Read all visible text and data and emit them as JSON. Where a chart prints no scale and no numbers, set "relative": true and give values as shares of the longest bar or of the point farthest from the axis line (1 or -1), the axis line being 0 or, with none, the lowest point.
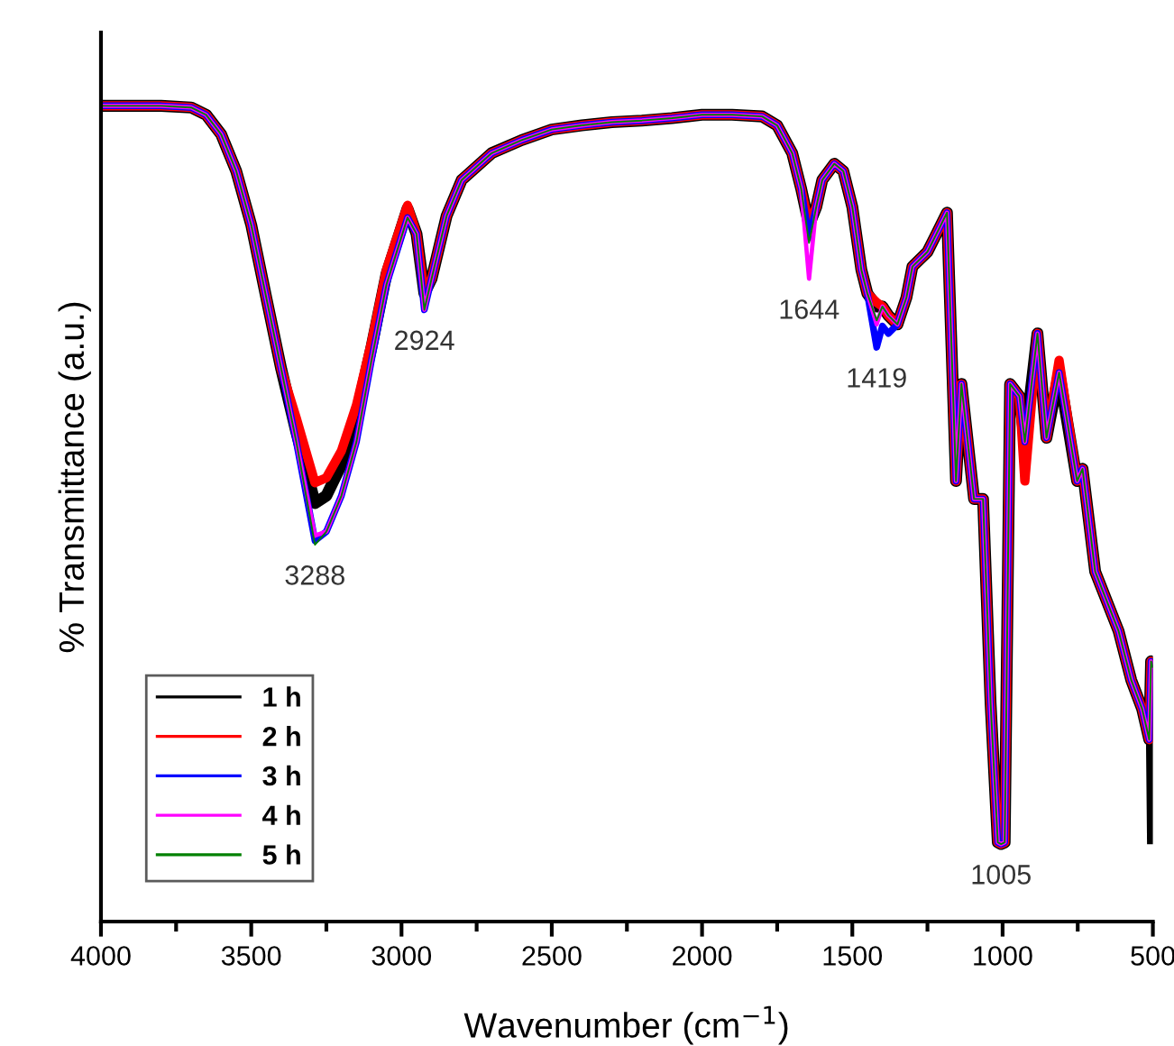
{
  "chart_data": {
    "type": "line",
    "relative": true,
    "xlabel": "Wavenumber (cm$^{−1}$)",
    "ylabel": "% Transmittance (a.u.)",
    "xlim": [
      4000,
      500
    ],
    "xticks": [
      4000,
      3500,
      3000,
      2500,
      2000,
      1500,
      1000,
      500
    ],
    "x": [
      4000,
      3800,
      3700,
      3650,
      3600,
      3550,
      3500,
      3450,
      3400,
      3350,
      3288,
      3250,
      3200,
      3150,
      3100,
      3050,
      2980,
      2950,
      2924,
      2900,
      2850,
      2800,
      2700,
      2600,
      2500,
      2400,
      2300,
      2200,
      2100,
      2000,
      1900,
      1800,
      1750,
      1700,
      1670,
      1644,
      1620,
      1600,
      1560,
      1530,
      1500,
      1470,
      1450,
      1419,
      1400,
      1380,
      1350,
      1320,
      1300,
      1250,
      1220,
      1185,
      1155,
      1137,
      1095,
      1065,
      1040,
      1016,
      1005,
      993,
      975,
      944,
      926,
      884,
      854,
      812,
      752,
      734,
      692,
      614,
      572,
      536,
      512,
      506,
      500
    ],
    "series": [
      {
        "name": "1 h",
        "color": "#000000",
        "values": [
          1.0,
          1.0,
          0.998,
          0.989,
          0.965,
          0.92,
          0.854,
          0.765,
          0.677,
          0.6,
          0.513,
          0.522,
          0.56,
          0.622,
          0.704,
          0.794,
          0.874,
          0.843,
          0.77,
          0.788,
          0.865,
          0.909,
          0.942,
          0.958,
          0.971,
          0.976,
          0.98,
          0.982,
          0.985,
          0.989,
          0.989,
          0.987,
          0.976,
          0.942,
          0.898,
          0.854,
          0.876,
          0.909,
          0.929,
          0.92,
          0.876,
          0.799,
          0.77,
          0.754,
          0.754,
          0.743,
          0.732,
          0.765,
          0.803,
          0.821,
          0.843,
          0.869,
          0.54,
          0.659,
          0.518,
          0.518,
          0.268,
          0.097,
          0.095,
          0.097,
          0.659,
          0.644,
          0.588,
          0.721,
          0.593,
          0.673,
          0.54,
          0.555,
          0.429,
          0.356,
          0.296,
          0.261,
          0.223,
          0.319,
          0.102
        ]
      },
      {
        "name": "2 h",
        "color": "#ff0000",
        "values": [
          1.0,
          1.0,
          0.998,
          0.989,
          0.965,
          0.92,
          0.854,
          0.765,
          0.677,
          0.617,
          0.538,
          0.544,
          0.577,
          0.633,
          0.71,
          0.799,
          0.878,
          0.843,
          0.77,
          0.788,
          0.865,
          0.909,
          0.942,
          0.958,
          0.971,
          0.976,
          0.98,
          0.982,
          0.985,
          0.989,
          0.989,
          0.987,
          0.976,
          0.942,
          0.898,
          0.854,
          0.876,
          0.909,
          0.929,
          0.92,
          0.876,
          0.799,
          0.77,
          0.759,
          0.754,
          0.743,
          0.732,
          0.765,
          0.803,
          0.821,
          0.843,
          0.869,
          0.54,
          0.659,
          0.518,
          0.518,
          0.268,
          0.097,
          0.095,
          0.097,
          0.659,
          0.644,
          0.54,
          0.721,
          0.593,
          0.688,
          0.54,
          0.555,
          0.429,
          0.356,
          0.296,
          0.261,
          0.223,
          0.319,
          0.312
        ]
      },
      {
        "name": "3 h",
        "color": "#0000ff",
        "values": [
          1.0,
          1.0,
          0.998,
          0.989,
          0.965,
          0.92,
          0.854,
          0.765,
          0.677,
          0.588,
          0.467,
          0.478,
          0.522,
          0.588,
          0.688,
          0.781,
          0.863,
          0.843,
          0.75,
          0.788,
          0.865,
          0.909,
          0.942,
          0.958,
          0.971,
          0.976,
          0.98,
          0.982,
          0.985,
          0.989,
          0.989,
          0.987,
          0.976,
          0.942,
          0.898,
          0.838,
          0.876,
          0.909,
          0.929,
          0.92,
          0.876,
          0.799,
          0.77,
          0.704,
          0.73,
          0.721,
          0.732,
          0.765,
          0.803,
          0.821,
          0.843,
          0.869,
          0.54,
          0.659,
          0.518,
          0.518,
          0.268,
          0.097,
          0.095,
          0.097,
          0.659,
          0.644,
          0.588,
          0.721,
          0.593,
          0.673,
          0.54,
          0.555,
          0.429,
          0.356,
          0.296,
          0.261,
          0.223,
          0.319,
          0.312
        ]
      },
      {
        "name": "4 h",
        "color": "#ff00ff",
        "values": [
          1.0,
          1.0,
          0.998,
          0.989,
          0.965,
          0.92,
          0.854,
          0.765,
          0.677,
          0.588,
          0.473,
          0.478,
          0.522,
          0.588,
          0.688,
          0.781,
          0.863,
          0.843,
          0.75,
          0.788,
          0.865,
          0.909,
          0.942,
          0.958,
          0.971,
          0.976,
          0.98,
          0.982,
          0.985,
          0.989,
          0.989,
          0.987,
          0.976,
          0.942,
          0.898,
          0.788,
          0.876,
          0.909,
          0.929,
          0.92,
          0.876,
          0.799,
          0.77,
          0.732,
          0.754,
          0.743,
          0.732,
          0.765,
          0.803,
          0.821,
          0.843,
          0.869,
          0.54,
          0.659,
          0.518,
          0.518,
          0.268,
          0.097,
          0.095,
          0.097,
          0.659,
          0.644,
          0.588,
          0.721,
          0.593,
          0.673,
          0.54,
          0.555,
          0.429,
          0.356,
          0.296,
          0.261,
          0.223,
          0.319,
          0.312
        ]
      },
      {
        "name": "5 h",
        "color": "#008000",
        "values": [
          1.0,
          1.0,
          0.998,
          0.989,
          0.965,
          0.92,
          0.854,
          0.765,
          0.677,
          0.588,
          0.462,
          0.478,
          0.522,
          0.588,
          0.688,
          0.781,
          0.863,
          0.843,
          0.75,
          0.788,
          0.865,
          0.909,
          0.942,
          0.958,
          0.971,
          0.976,
          0.98,
          0.982,
          0.985,
          0.989,
          0.989,
          0.987,
          0.976,
          0.942,
          0.898,
          0.832,
          0.876,
          0.909,
          0.929,
          0.92,
          0.876,
          0.799,
          0.77,
          0.737,
          0.754,
          0.743,
          0.732,
          0.765,
          0.803,
          0.821,
          0.843,
          0.869,
          0.54,
          0.659,
          0.518,
          0.518,
          0.268,
          0.097,
          0.095,
          0.097,
          0.659,
          0.644,
          0.588,
          0.721,
          0.593,
          0.673,
          0.54,
          0.555,
          0.429,
          0.356,
          0.296,
          0.261,
          0.223,
          0.319,
          0.312
        ]
      }
    ],
    "annotations": [
      {
        "text": "3288",
        "x": 3288,
        "y": 0.462
      },
      {
        "text": "2924",
        "x": 2924,
        "y": 0.75
      },
      {
        "text": "1644",
        "x": 1644,
        "y": 0.788
      },
      {
        "text": "1419",
        "x": 1419,
        "y": 0.704
      },
      {
        "text": "1005",
        "x": 1005,
        "y": 0.095
      }
    ],
    "legend": "bottom left",
    "grid": false,
    "line_style": "solid",
    "marker": "none"
  }
}
